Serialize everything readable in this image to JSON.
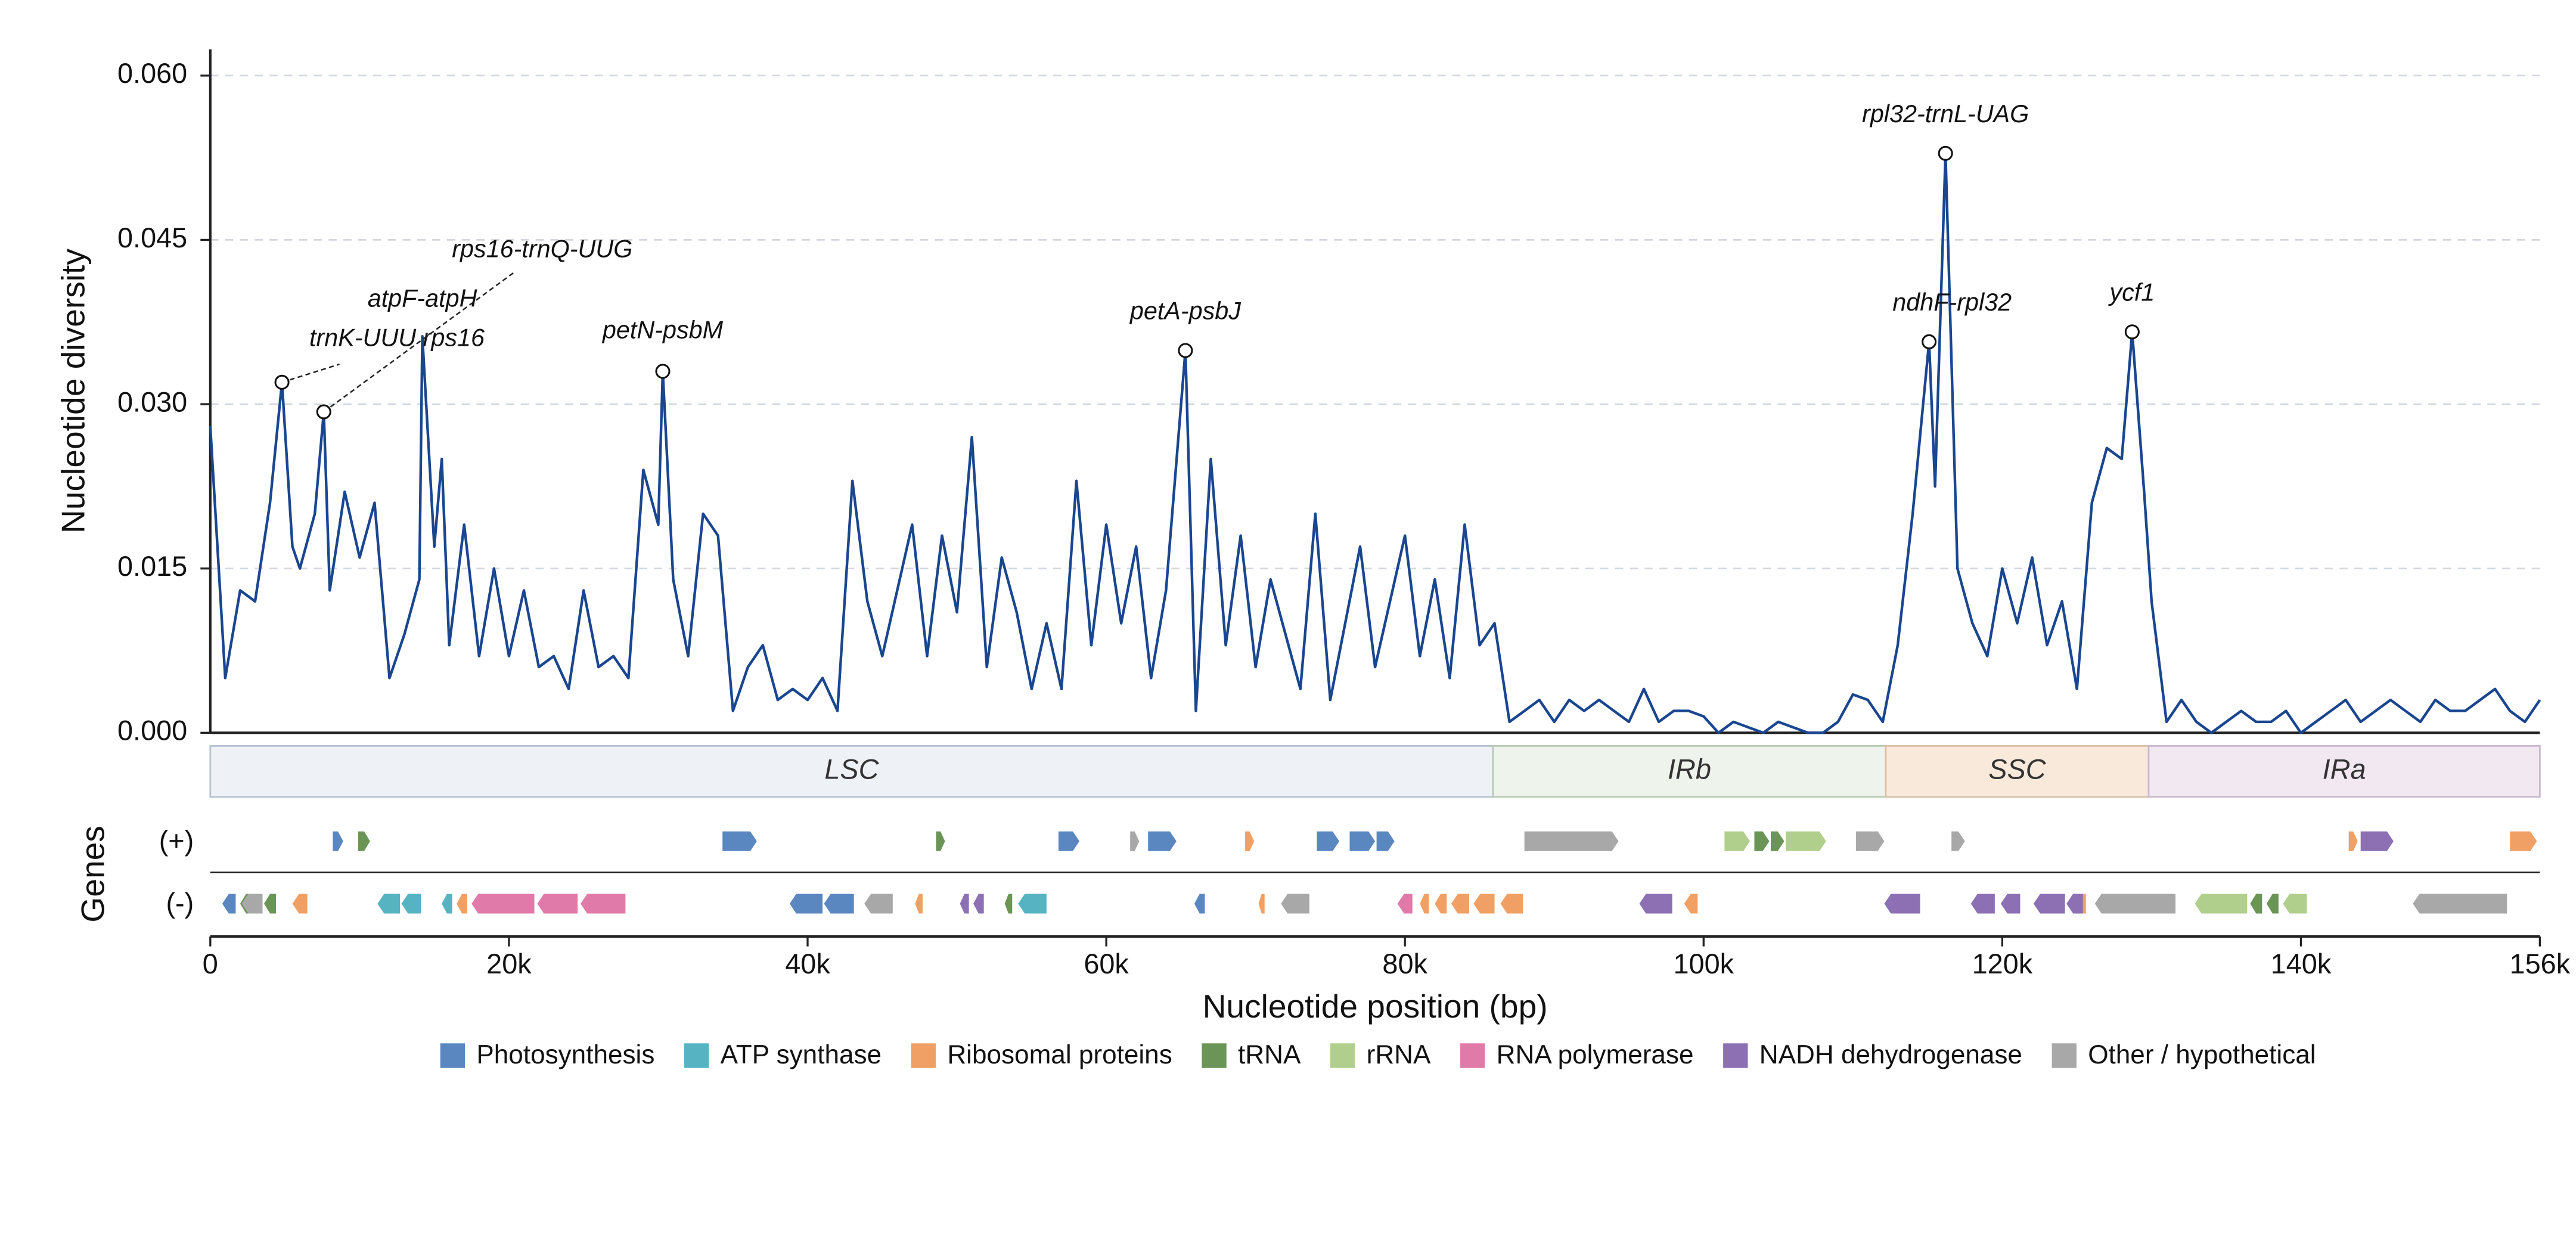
{
  "chart_data": {
    "type": "line",
    "ylabel": "Nucleotide diversity",
    "xlabel": "Nucleotide position (bp)",
    "color": "#1a4690",
    "grid": true,
    "xlim": [
      0,
      156000
    ],
    "ylim": [
      0,
      0.0624
    ],
    "xticks": [
      0,
      {
        "value": 20000,
        "label": "20k"
      },
      {
        "value": 40000,
        "label": "40k"
      },
      {
        "value": 60000,
        "label": "60k"
      },
      {
        "value": 80000,
        "label": "80k"
      },
      {
        "value": 100000,
        "label": "100k"
      },
      {
        "value": 120000,
        "label": "120k"
      },
      {
        "value": 140000,
        "label": "140k"
      },
      {
        "value": 156000,
        "label": "156k"
      }
    ],
    "yticks": [
      {
        "value": 0,
        "label": "0.000"
      },
      {
        "value": 0.015,
        "label": "0.015"
      },
      {
        "value": 0.03,
        "label": "0.030"
      },
      {
        "value": 0.045,
        "label": "0.045"
      },
      {
        "value": 0.06,
        "label": "0.060"
      }
    ],
    "x": [
      0,
      1000,
      2000,
      3000,
      4000,
      4800,
      5500,
      6000,
      7000,
      7600,
      8000,
      9000,
      10000,
      11000,
      12000,
      13000,
      14000,
      14200,
      15000,
      15500,
      16000,
      17000,
      18000,
      19000,
      20000,
      21000,
      22000,
      23000,
      24000,
      25000,
      26000,
      27000,
      28000,
      29000,
      30000,
      30300,
      31000,
      32000,
      33000,
      34000,
      35000,
      36000,
      37000,
      38000,
      39000,
      40000,
      41000,
      42000,
      43000,
      44000,
      45000,
      46000,
      47000,
      48000,
      49000,
      50000,
      51000,
      52000,
      53000,
      54000,
      55000,
      56000,
      57000,
      58000,
      59000,
      60000,
      61000,
      62000,
      63000,
      64000,
      65300,
      66000,
      67000,
      68000,
      69000,
      70000,
      71000,
      72000,
      73000,
      74000,
      75000,
      76000,
      77000,
      78000,
      79000,
      80000,
      81000,
      82000,
      83000,
      84000,
      85000,
      86000,
      87000,
      88000,
      89000,
      90000,
      91000,
      92000,
      93000,
      94000,
      95000,
      96000,
      97000,
      98000,
      99000,
      100000,
      101000,
      102000,
      103000,
      104000,
      105000,
      106000,
      107000,
      108000,
      109000,
      110000,
      111000,
      112000,
      113000,
      114000,
      115100,
      115500,
      116200,
      117000,
      118000,
      119000,
      120000,
      121000,
      122000,
      123000,
      124000,
      125000,
      126000,
      127000,
      128000,
      128700,
      129500,
      130000,
      131000,
      132000,
      133000,
      134000,
      135000,
      136000,
      137000,
      138000,
      139000,
      140000,
      141000,
      142000,
      143000,
      144000,
      145000,
      146000,
      147000,
      148000,
      149000,
      150000,
      151000,
      152000,
      153000,
      154000,
      155000,
      156000
    ],
    "values": [
      0.028,
      0.005,
      0.013,
      0.012,
      0.021,
      0.032,
      0.017,
      0.015,
      0.02,
      0.0293,
      0.013,
      0.022,
      0.016,
      0.021,
      0.005,
      0.009,
      0.014,
      0.0362,
      0.017,
      0.025,
      0.008,
      0.019,
      0.007,
      0.015,
      0.007,
      0.013,
      0.006,
      0.007,
      0.004,
      0.013,
      0.006,
      0.007,
      0.005,
      0.024,
      0.019,
      0.033,
      0.014,
      0.007,
      0.02,
      0.018,
      0.002,
      0.006,
      0.008,
      0.003,
      0.004,
      0.003,
      0.005,
      0.002,
      0.023,
      0.012,
      0.007,
      0.013,
      0.019,
      0.007,
      0.018,
      0.011,
      0.027,
      0.006,
      0.016,
      0.011,
      0.004,
      0.01,
      0.004,
      0.023,
      0.008,
      0.019,
      0.01,
      0.017,
      0.005,
      0.013,
      0.0349,
      0.002,
      0.025,
      0.008,
      0.018,
      0.006,
      0.014,
      0.009,
      0.004,
      0.02,
      0.003,
      0.01,
      0.017,
      0.006,
      0.012,
      0.018,
      0.007,
      0.014,
      0.005,
      0.019,
      0.008,
      0.01,
      0.001,
      0.002,
      0.003,
      0.001,
      0.003,
      0.002,
      0.003,
      0.002,
      0.001,
      0.004,
      0.001,
      0.002,
      0.002,
      0.0015,
      0,
      0.001,
      0.0005,
      0,
      0.001,
      0.0005,
      0,
      0,
      0.001,
      0.0035,
      0.003,
      0.001,
      0.008,
      0.02,
      0.0357,
      0.0225,
      0.0529,
      0.015,
      0.01,
      0.007,
      0.015,
      0.01,
      0.016,
      0.008,
      0.012,
      0.004,
      0.021,
      0.026,
      0.025,
      0.0366,
      0.022,
      0.012,
      0.001,
      0.003,
      0.001,
      0,
      0.001,
      0.002,
      0.001,
      0.001,
      0.002,
      0,
      0.001,
      0.002,
      0.003,
      0.001,
      0.002,
      0.003,
      0.002,
      0.001,
      0.003,
      0.002,
      0.002,
      0.003,
      0.004,
      0.002,
      0.001,
      0.003
    ],
    "annotations": [
      {
        "text": "trnK-UUU rps16",
        "x": 4800,
        "y": 0.032,
        "marker": true
      },
      {
        "text": "rps16-trnQ-UUG",
        "x": 7600,
        "y": 0.0293,
        "marker": true
      },
      {
        "text": "atpF-atpH",
        "x": 14200,
        "y": 0.0362,
        "marker": false
      },
      {
        "text": "petN-psbM",
        "x": 30300,
        "y": 0.033,
        "marker": true
      },
      {
        "text": "petA-psbJ",
        "x": 65300,
        "y": 0.0349,
        "marker": true
      },
      {
        "text": "ndhF-rpl32",
        "x": 115100,
        "y": 0.0357,
        "marker": true
      },
      {
        "text": "rpl32-trnL-UAG",
        "x": 116200,
        "y": 0.0529,
        "marker": true
      },
      {
        "text": "ycf1",
        "x": 128700,
        "y": 0.0366,
        "marker": true
      }
    ],
    "regions": [
      {
        "name": "LSC",
        "start": 0,
        "end": 85900,
        "color": "#eef2f6",
        "edge": "#b4c2d0"
      },
      {
        "name": "IRb",
        "start": 85900,
        "end": 112200,
        "color": "#eef3ec",
        "edge": "#b9c9b4"
      },
      {
        "name": "SSC",
        "start": 112200,
        "end": 129800,
        "color": "#f8e9db",
        "edge": "#d8c0a8"
      },
      {
        "name": "IRa",
        "start": 129800,
        "end": 156000,
        "color": "#f1e8f2",
        "edge": "#c9b8cc"
      }
    ],
    "genes": {
      "label": "Genes",
      "strand_labels": [
        "(+)",
        "(-)"
      ],
      "categories": [
        {
          "name": "Photosynthesis",
          "color": "#5b87c0",
          "plus": [
            [
              8200,
              8900
            ],
            [
              34300,
              36600
            ],
            [
              56800,
              58200
            ],
            [
              62800,
              64700
            ],
            [
              74100,
              75600
            ],
            [
              76300,
              78000
            ],
            [
              78100,
              79300
            ]
          ],
          "minus": [
            [
              800,
              1700
            ],
            [
              38800,
              41000
            ],
            [
              41100,
              43100
            ],
            [
              65900,
              66600
            ]
          ]
        },
        {
          "name": "ATP synthase",
          "color": "#56b3c2",
          "plus": [],
          "minus": [
            [
              11200,
              12700
            ],
            [
              12800,
              14100
            ],
            [
              15500,
              16200
            ],
            [
              54100,
              56000
            ]
          ]
        },
        {
          "name": "Ribosomal proteins",
          "color": "#f0a064",
          "plus": [
            [
              69300,
              69900
            ],
            [
              143200,
              143800
            ],
            [
              154000,
              155800
            ]
          ],
          "minus": [
            [
              5500,
              6500
            ],
            [
              16500,
              17200
            ],
            [
              47200,
              47700
            ],
            [
              70200,
              70600
            ],
            [
              81000,
              81600
            ],
            [
              82000,
              82800
            ],
            [
              83100,
              84300
            ],
            [
              84600,
              86000
            ],
            [
              86400,
              87900
            ],
            [
              98700,
              99600
            ],
            [
              125100,
              125600
            ]
          ]
        },
        {
          "name": "tRNA",
          "color": "#6a9556",
          "plus": [
            [
              9900,
              10700
            ],
            [
              48600,
              49200
            ],
            [
              103400,
              104400
            ],
            [
              104500,
              105400
            ]
          ],
          "minus": [
            [
              2000,
              2800
            ],
            [
              3600,
              4400
            ],
            [
              53200,
              53700
            ],
            [
              136600,
              137400
            ],
            [
              137700,
              138500
            ]
          ]
        },
        {
          "name": "rRNA",
          "color": "#b0cf8c",
          "plus": [
            [
              101400,
              103100
            ],
            [
              105500,
              108200
            ]
          ],
          "minus": [
            [
              132900,
              136400
            ],
            [
              138800,
              140400
            ]
          ]
        },
        {
          "name": "RNA polymerase",
          "color": "#e07aa8",
          "plus": [],
          "minus": [
            [
              17500,
              21700
            ],
            [
              21900,
              24600
            ],
            [
              24800,
              27800
            ],
            [
              79500,
              80500
            ]
          ]
        },
        {
          "name": "NADH dehydrogenase",
          "color": "#8c70b3",
          "plus": [
            [
              144000,
              146200
            ]
          ],
          "minus": [
            [
              50200,
              50800
            ],
            [
              51100,
              51800
            ],
            [
              95700,
              97900
            ],
            [
              112100,
              114500
            ],
            [
              117900,
              119500
            ],
            [
              119900,
              121200
            ],
            [
              122100,
              124200
            ],
            [
              124300,
              125400
            ]
          ]
        },
        {
          "name": "Other / hypothetical",
          "color": "#a8a8a8",
          "plus": [
            [
              61600,
              62200
            ],
            [
              88000,
              94300
            ],
            [
              110200,
              112100
            ],
            [
              116600,
              117500
            ]
          ],
          "minus": [
            [
              2100,
              3500
            ],
            [
              43800,
              45700
            ],
            [
              71700,
              73600
            ],
            [
              126200,
              131600
            ],
            [
              147500,
              153800
            ]
          ]
        }
      ]
    }
  }
}
